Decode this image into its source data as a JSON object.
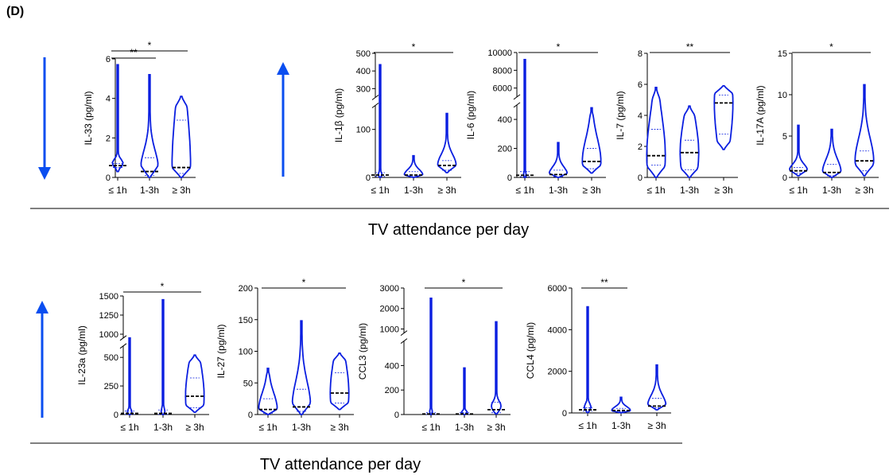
{
  "figure": {
    "panel_label": "(D)",
    "row1_xlabel": "TV attendance per day",
    "row2_xlabel": "TV attendance per day",
    "colors": {
      "violin": "#0a1ee0",
      "median": "#000000",
      "arrow": "#0a4ef0"
    }
  },
  "chart_data": [
    {
      "type": "violin",
      "ylabel": "IL-33 (pg/ml)",
      "categories": [
        "≤ 1h",
        "1-3h",
        "≥ 3h"
      ],
      "y_ticks": [
        "0",
        "2",
        "4",
        "6"
      ],
      "ylim": [
        0,
        6
      ],
      "arrow": "down",
      "series": [
        {
          "max": 5.7,
          "q1": 0.5,
          "median": 0.6,
          "q3": 0.7,
          "min": 0.3
        },
        {
          "max": 5.2,
          "q1": 0.1,
          "median": 0.3,
          "q3": 1.0,
          "min": 0.0
        },
        {
          "max": 4.1,
          "q1": 0.2,
          "median": 0.5,
          "q3": 2.9,
          "min": 0.0
        }
      ],
      "significance": [
        {
          "groups": [
            1,
            2
          ],
          "label": "**"
        },
        {
          "groups": [
            1,
            3
          ],
          "label": "*"
        }
      ]
    },
    {
      "type": "violin",
      "ylabel": "IL-1β (pg/ml)",
      "categories": [
        "≤ 1h",
        "1-3h",
        "≥ 3h"
      ],
      "y_ticks": [
        "0",
        "100",
        "300",
        "400",
        "500"
      ],
      "y_break": [
        150,
        250
      ],
      "ylim": [
        0,
        500
      ],
      "arrow": "up",
      "series": [
        {
          "max": 435,
          "q1": 2,
          "median": 5,
          "q3": 10,
          "min": 0
        },
        {
          "max": 45,
          "q1": 2,
          "median": 5,
          "q3": 12,
          "min": 0
        },
        {
          "max": 133,
          "q1": 15,
          "median": 25,
          "q3": 35,
          "min": 10
        }
      ],
      "significance": [
        {
          "groups": [
            1,
            3
          ],
          "label": "*"
        }
      ]
    },
    {
      "type": "violin",
      "ylabel": "IL-6 (pg/ml)",
      "categories": [
        "≤ 1h",
        "1-3h",
        "≥ 3h"
      ],
      "y_ticks": [
        "0",
        "200",
        "400",
        "6000",
        "8000",
        "10000"
      ],
      "y_break": [
        500,
        5000
      ],
      "ylim": [
        0,
        10000
      ],
      "arrow": "up",
      "series": [
        {
          "max": 9200,
          "q1": 5,
          "median": 15,
          "q3": 40,
          "min": 0
        },
        {
          "max": 240,
          "q1": 5,
          "median": 20,
          "q3": 50,
          "min": 0
        },
        {
          "max": 480,
          "q1": 60,
          "median": 110,
          "q3": 200,
          "min": 30
        }
      ],
      "significance": [
        {
          "groups": [
            1,
            3
          ],
          "label": "*"
        }
      ]
    },
    {
      "type": "violin",
      "ylabel": "IL-7 (pg/ml)",
      "categories": [
        "≤ 1h",
        "1-3h",
        "≥ 3h"
      ],
      "y_ticks": [
        "0",
        "2",
        "4",
        "6",
        "8"
      ],
      "ylim": [
        0,
        8
      ],
      "arrow": null,
      "series": [
        {
          "max": 5.8,
          "q1": 0.8,
          "median": 1.4,
          "q3": 3.1,
          "min": 0.0
        },
        {
          "max": 4.6,
          "q1": 0.5,
          "median": 1.6,
          "q3": 2.4,
          "min": 0.0
        },
        {
          "max": 5.9,
          "q1": 2.8,
          "median": 4.8,
          "q3": 5.3,
          "min": 1.8
        }
      ],
      "significance": [
        {
          "groups": [
            1,
            3
          ],
          "label": "**"
        }
      ]
    },
    {
      "type": "violin",
      "ylabel": "IL-17A (pg/ml)",
      "categories": [
        "≤ 1h",
        "1-3h",
        "≥ 3h"
      ],
      "y_ticks": [
        "0",
        "5",
        "10",
        "15"
      ],
      "ylim": [
        0,
        15
      ],
      "arrow": null,
      "series": [
        {
          "max": 6.3,
          "q1": 0.5,
          "median": 0.8,
          "q3": 1.2,
          "min": 0.2
        },
        {
          "max": 5.8,
          "q1": 0.2,
          "median": 0.6,
          "q3": 1.6,
          "min": 0.0
        },
        {
          "max": 11.2,
          "q1": 0.8,
          "median": 2.0,
          "q3": 3.2,
          "min": 0.2
        }
      ],
      "significance": [
        {
          "groups": [
            1,
            3
          ],
          "label": "*"
        }
      ]
    },
    {
      "type": "violin",
      "ylabel": "IL-23a (pg/ml)",
      "categories": [
        "≤ 1h",
        "1-3h",
        "≥ 3h"
      ],
      "y_ticks": [
        "0",
        "250",
        "500",
        "1000",
        "1250",
        "1500"
      ],
      "y_break": [
        600,
        950
      ],
      "ylim": [
        0,
        1500
      ],
      "arrow": "up",
      "series": [
        {
          "max": 950,
          "q1": 2,
          "median": 10,
          "q3": 30,
          "min": 0
        },
        {
          "max": 1450,
          "q1": 2,
          "median": 10,
          "q3": 40,
          "min": 0
        },
        {
          "max": 520,
          "q1": 60,
          "median": 160,
          "q3": 320,
          "min": 20
        }
      ],
      "significance": [
        {
          "groups": [
            1,
            3
          ],
          "label": "*"
        }
      ]
    },
    {
      "type": "violin",
      "ylabel": "IL-27 (pg/ml)",
      "categories": [
        "≤ 1h",
        "1-3h",
        "≥ 3h"
      ],
      "y_ticks": [
        "0",
        "50",
        "100",
        "150",
        "200"
      ],
      "ylim": [
        0,
        200
      ],
      "arrow": null,
      "series": [
        {
          "max": 73,
          "q1": 2,
          "median": 8,
          "q3": 25,
          "min": 0
        },
        {
          "max": 148,
          "q1": 5,
          "median": 12,
          "q3": 40,
          "min": 0
        },
        {
          "max": 97,
          "q1": 18,
          "median": 34,
          "q3": 66,
          "min": 8
        }
      ],
      "significance": [
        {
          "groups": [
            1,
            3
          ],
          "label": "*"
        }
      ]
    },
    {
      "type": "violin",
      "ylabel": "CCL3 (pg/ml)",
      "categories": [
        "≤ 1h",
        "1-3h",
        "≥ 3h"
      ],
      "y_ticks": [
        "0",
        "200",
        "400",
        "1000",
        "2000",
        "3000"
      ],
      "y_break": [
        600,
        800
      ],
      "ylim": [
        0,
        3000
      ],
      "arrow": null,
      "series": [
        {
          "max": 2500,
          "q1": 1,
          "median": 5,
          "q3": 15,
          "min": 0
        },
        {
          "max": 380,
          "q1": 1,
          "median": 5,
          "q3": 15,
          "min": 0
        },
        {
          "max": 1350,
          "q1": 15,
          "median": 40,
          "q3": 100,
          "min": 5
        }
      ],
      "significance": [
        {
          "groups": [
            1,
            3
          ],
          "label": "*"
        }
      ]
    },
    {
      "type": "violin",
      "ylabel": "CCL4 (pg/ml)",
      "categories": [
        "≤ 1h",
        "1-3h",
        "≥ 3h"
      ],
      "y_ticks": [
        "0",
        "2000",
        "4000",
        "6000"
      ],
      "ylim": [
        0,
        6000
      ],
      "arrow": null,
      "series": [
        {
          "max": 5100,
          "q1": 80,
          "median": 150,
          "q3": 250,
          "min": 20
        },
        {
          "max": 750,
          "q1": 60,
          "median": 120,
          "q3": 220,
          "min": 10
        },
        {
          "max": 2300,
          "q1": 250,
          "median": 330,
          "q3": 700,
          "min": 150
        }
      ],
      "significance": [
        {
          "groups": [
            1,
            2
          ],
          "label": "**"
        }
      ]
    }
  ]
}
